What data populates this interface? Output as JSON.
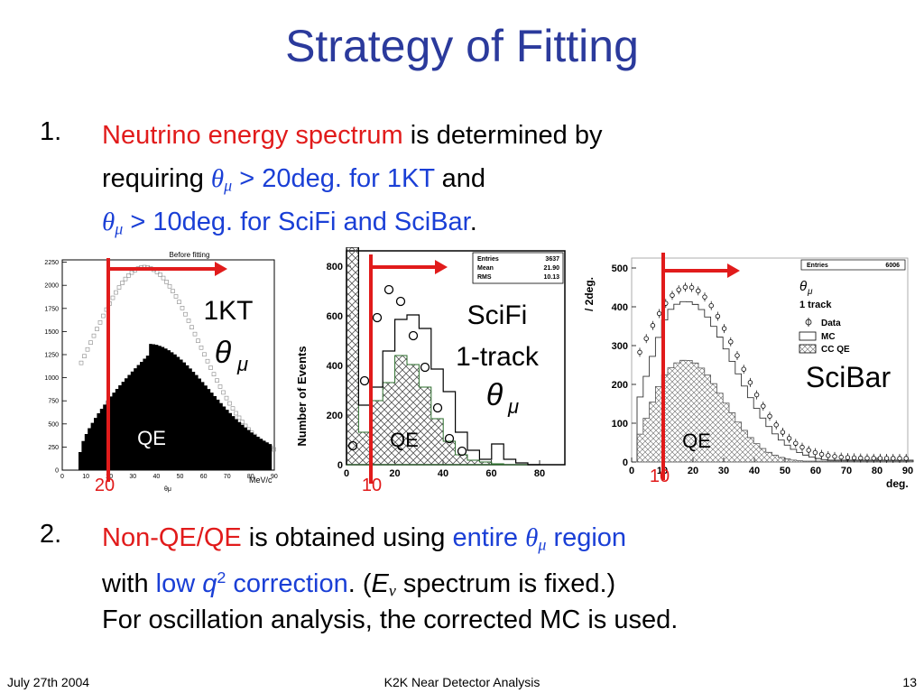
{
  "title": "Strategy of Fitting",
  "item1": {
    "number": "1.",
    "l1_red": "Neutrino energy spectrum",
    "l1_rest": " is determined by",
    "l2_a": "requiring ",
    "theta": "θ",
    "mu": "μ",
    "l2_blue": " > 20deg. for 1KT",
    "l2_and": " and",
    "l3_blue": " > 10deg. for SciFi and SciBar",
    "l3_end": "."
  },
  "item2": {
    "number": "2.",
    "l1_red": "Non-QE/QE",
    "l1_mid": " is obtained using ",
    "l1_blue1": "entire ",
    "theta": "θ",
    "mu": "μ",
    "l1_blue2": " region",
    "l2_with": "with ",
    "l2_low": "low ",
    "q": "q",
    "sq": "2",
    "l2_corr": " correction",
    "l2_paren": ". (",
    "E": "E",
    "nu": "ν",
    "l2_end": " spectrum is fixed.)",
    "l3": "For oscillation analysis, the corrected MC is used."
  },
  "panel_1kt": {
    "plot_title": "Before fitting",
    "label_line1": "1KT",
    "theta": "θ",
    "mu": "μ",
    "qe_label": "QE",
    "cut_label": "20",
    "x_unit": "MeV/c",
    "x_sym": "θμ",
    "y_ticks": [
      "0",
      "250",
      "500",
      "750",
      "1000",
      "1250",
      "1500",
      "1750",
      "2000",
      "2250"
    ],
    "x_ticks": [
      "0",
      "10",
      "20",
      "30",
      "40",
      "50",
      "60",
      "70",
      "80",
      "90"
    ]
  },
  "panel_scifi": {
    "y_axis_label": "Number of Events",
    "label_line1": "SciFi",
    "label_line2": "1-track",
    "theta": "θ",
    "mu": "μ",
    "qe_label": "QE",
    "cut_label": "10",
    "stats": {
      "rows": [
        {
          "k": "Entries",
          "v": "3637"
        },
        {
          "k": "Mean",
          "v": "21.90"
        },
        {
          "k": "RMS",
          "v": "10.13"
        }
      ]
    },
    "y_ticks": [
      "0",
      "200",
      "400",
      "600",
      "800"
    ],
    "x_ticks": [
      "0",
      "20",
      "40",
      "60",
      "80"
    ]
  },
  "panel_scibar": {
    "y_axis_label": "/ 2deg.",
    "label": "SciBar",
    "qe_label": "QE",
    "cut_label": "10",
    "x_unit": "deg.",
    "stats": {
      "k": "Entries",
      "v": "6006"
    },
    "legend": {
      "theta": "θ",
      "mu": "μ",
      "title2": "1 track",
      "items": [
        "Data",
        "MC",
        "CC QE"
      ]
    },
    "y_ticks": [
      "0",
      "100",
      "200",
      "300",
      "400",
      "500"
    ],
    "x_ticks": [
      "0",
      "10",
      "20",
      "30",
      "40",
      "50",
      "60",
      "70",
      "80",
      "90"
    ]
  },
  "colors": {
    "title": "#2b3a9c",
    "red": "#e11b1b",
    "blue": "#1a3fd6"
  },
  "footer": {
    "date": "July 27th 2004",
    "center": "K2K Near Detector Analysis",
    "page": "13"
  }
}
